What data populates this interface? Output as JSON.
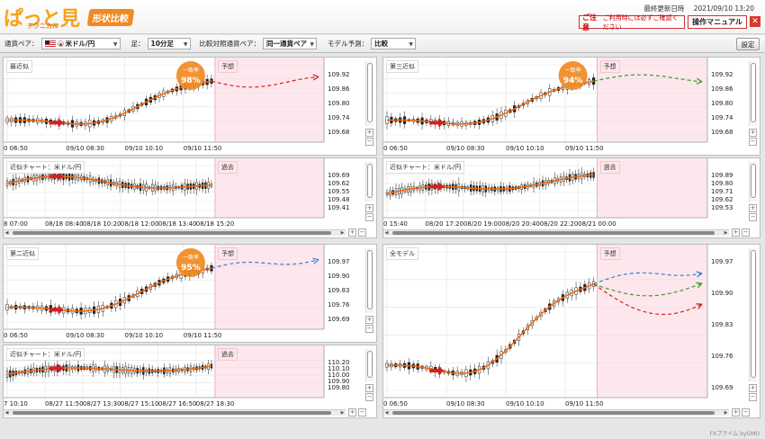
{
  "header": {
    "logo_main": "ぱっと見",
    "logo_sub": "テクニカル",
    "logo_tag": "形状比較",
    "updated_label": "最終更新日時",
    "updated_value": "2021/09/10 13:20",
    "notice_title": "ご注意",
    "notice_text": "ご利用時には必ずご確認ください",
    "manual_label": "操作マニュアル",
    "close_label": "✕"
  },
  "toolbar": {
    "pair_label": "通貨ペア：",
    "pair_value": "米ドル/円",
    "bar_label": "足：",
    "bar_value": "10分足",
    "compare_label": "比較対照通貨ペア：",
    "compare_value": "同一通貨ペア",
    "model_label": "モデル予測：",
    "model_value": "比較",
    "settings_label": "設定"
  },
  "panels": {
    "p1": {
      "title": "最近似",
      "badge_label": "一致率",
      "badge_value": "98%",
      "forecast_label": "予想",
      "y_ticks": [
        "109.92",
        "109.86",
        "109.80",
        "109.74",
        "109.68"
      ],
      "x_ticks": [
        "0 06:50",
        "09/10 08:30",
        "09/10 10:10",
        "09/10 11:50"
      ]
    },
    "p1b": {
      "title": "近似チャート：米ドル/円",
      "past_label": "過去",
      "y_ticks": [
        "109.69",
        "109.62",
        "109.55",
        "109.48",
        "109.41"
      ],
      "x_ticks": [
        "8 07:00",
        "08/18 08:40",
        "08/18 10:20",
        "08/18 12:00",
        "08/18 13:40",
        "08/18 15:20"
      ]
    },
    "p2": {
      "title": "第二近似",
      "badge_label": "一致率",
      "badge_value": "95%",
      "forecast_label": "予想",
      "y_ticks": [
        "109.97",
        "109.90",
        "109.83",
        "109.76",
        "109.69"
      ],
      "x_ticks": [
        "0 06:50",
        "09/10 08:30",
        "09/10 10:10",
        "09/10 11:50"
      ]
    },
    "p2b": {
      "title": "近似チャート：米ドル/円",
      "past_label": "過去",
      "y_ticks": [
        "110.20",
        "110.10",
        "110.00",
        "109.90",
        "109.80"
      ],
      "x_ticks": [
        "7 10:10",
        "08/27 11:50",
        "08/27 13:30",
        "08/27 15:10",
        "08/27 16:50",
        "08/27 18:30"
      ]
    },
    "p3": {
      "title": "第三近似",
      "badge_label": "一致率",
      "badge_value": "94%",
      "forecast_label": "予想",
      "y_ticks": [
        "109.92",
        "109.86",
        "109.80",
        "109.74",
        "109.68"
      ],
      "x_ticks": [
        "0 06:50",
        "09/10 08:30",
        "09/10 10:10",
        "09/10 11:50"
      ]
    },
    "p3b": {
      "title": "近似チャート：米ドル/円",
      "past_label": "過去",
      "y_ticks": [
        "109.89",
        "109.80",
        "109.71",
        "109.62",
        "109.53"
      ],
      "x_ticks": [
        "0 15:40",
        "08/20 17:20",
        "08/20 19:00",
        "08/20 20:40",
        "08/20 22:20",
        "08/21 00:00"
      ]
    },
    "p4": {
      "title": "全モデル",
      "forecast_label": "予想",
      "y_ticks": [
        "109.97",
        "109.90",
        "109.83",
        "109.76",
        "109.69"
      ],
      "x_ticks": [
        "0 06:50",
        "09/10 08:30",
        "09/10 10:10",
        "09/10 11:50"
      ]
    }
  },
  "footer": {
    "brand": "FXプライム byGMO"
  },
  "colors": {
    "accent": "#f08a24",
    "forecast_bg": "#fde7ec",
    "line_main": "#ee6a12",
    "red": "#d62020",
    "blue": "#3a7bd5",
    "green": "#3a9a2a"
  }
}
